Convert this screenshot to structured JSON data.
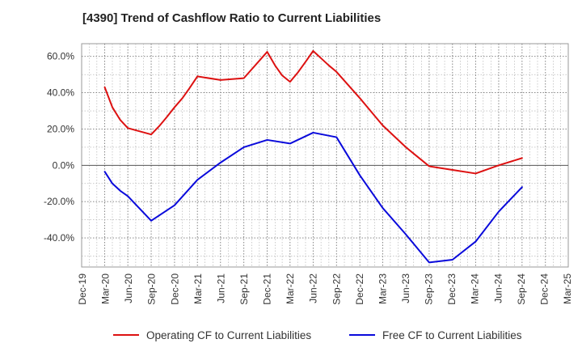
{
  "chart_data": {
    "type": "line",
    "title": "[4390]  Trend of Cashflow Ratio to Current Liabilities",
    "xlabel": "",
    "ylabel": "",
    "x_ticks": [
      "Dec-19",
      "Mar-20",
      "Jun-20",
      "Sep-20",
      "Dec-20",
      "Mar-21",
      "Jun-21",
      "Sep-21",
      "Dec-21",
      "Mar-22",
      "Jun-22",
      "Sep-22",
      "Dec-22",
      "Mar-23",
      "Jun-23",
      "Sep-23",
      "Dec-23",
      "Mar-24",
      "Jun-24",
      "Sep-24",
      "Dec-24",
      "Mar-25"
    ],
    "y_ticks": [
      "60.0%",
      "40.0%",
      "20.0%",
      "0.0%",
      "-20.0%",
      "-40.0%"
    ],
    "y_tick_values": [
      60,
      40,
      20,
      0,
      -20,
      -40
    ],
    "ylim": [
      -56,
      67
    ],
    "grid": true,
    "legend_position": "bottom",
    "series": [
      {
        "name": "Operating CF to Current Liabilities",
        "color": "#dd1111",
        "x": [
          "2020-03-31",
          "2020-04-30",
          "2020-05-31",
          "2020-06-30",
          "2020-09-30",
          "2020-10-31",
          "2020-11-30",
          "2020-12-31",
          "2021-01-31",
          "2021-02-28",
          "2021-03-31",
          "2021-06-30",
          "2021-09-30",
          "2021-12-31",
          "2022-01-31",
          "2022-02-28",
          "2022-03-31",
          "2022-04-30",
          "2022-05-31",
          "2022-06-30",
          "2022-07-31",
          "2022-08-31",
          "2022-09-30",
          "2022-12-31",
          "2023-03-31",
          "2023-06-30",
          "2023-09-30",
          "2023-12-31",
          "2024-03-31",
          "2024-06-30",
          "2024-09-30"
        ],
        "values": [
          43,
          32,
          25,
          20.5,
          17,
          21.5,
          26.5,
          32,
          37,
          42.5,
          49,
          47,
          48,
          62.5,
          55,
          49.5,
          46,
          51,
          57,
          63,
          59,
          55,
          51.5,
          37,
          22,
          10,
          -0.5,
          -2.5,
          -4.5,
          0,
          4
        ]
      },
      {
        "name": "Free CF to Current Liabilities",
        "color": "#0a0adb",
        "x": [
          "2020-03-31",
          "2020-04-30",
          "2020-05-31",
          "2020-06-30",
          "2020-09-30",
          "2020-12-31",
          "2021-03-31",
          "2021-06-30",
          "2021-09-30",
          "2021-12-31",
          "2022-03-31",
          "2022-06-30",
          "2022-09-30",
          "2022-12-31",
          "2023-03-31",
          "2023-06-30",
          "2023-09-30",
          "2023-12-31",
          "2024-03-31",
          "2024-06-30",
          "2024-09-30"
        ],
        "values": [
          -3.5,
          -10,
          -14,
          -17,
          -30.5,
          -22,
          -8,
          1.5,
          10,
          14,
          12,
          18,
          15.5,
          -5.5,
          -23.5,
          -38,
          -53.5,
          -52,
          -42,
          -25.5,
          -12
        ]
      }
    ]
  }
}
